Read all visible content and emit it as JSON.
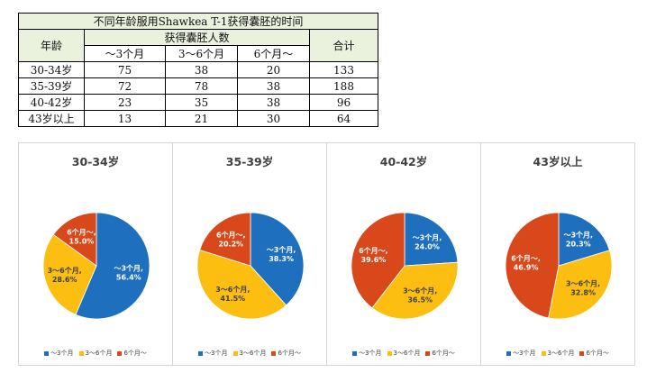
{
  "table": {
    "title": "不同年龄服用Shawkea T-1获得囊胚的时间",
    "age_header": "年龄",
    "group_header": "获得囊胚人数",
    "total_header": "合计",
    "columns": [
      "～3个月",
      "3～6个月",
      "6个月～"
    ],
    "rows": [
      {
        "age": "30-34岁",
        "v": [
          "75",
          "38",
          "20"
        ],
        "total": "133"
      },
      {
        "age": "35-39岁",
        "v": [
          "72",
          "78",
          "38"
        ],
        "total": "188"
      },
      {
        "age": "40-42岁",
        "v": [
          "23",
          "35",
          "38"
        ],
        "total": "96"
      },
      {
        "age": "43岁以上",
        "v": [
          "13",
          "21",
          "30"
        ],
        "total": "64"
      }
    ]
  },
  "colors": {
    "s1": "#1f6fbf",
    "s2": "#fbbe11",
    "s3": "#d9481a"
  },
  "chart_data": [
    {
      "type": "pie",
      "title": "30-34岁",
      "categories": [
        "～3个月",
        "3～6个月",
        "6个月～"
      ],
      "values": [
        56.4,
        28.6,
        15.0
      ],
      "labels": [
        [
          "～3个月,",
          "56.4%"
        ],
        [
          "3～6个月,",
          "28.6%"
        ],
        [
          "6个月～,",
          "15.0%"
        ]
      ],
      "legend": [
        "～3个月",
        "3～6个月",
        "6个月～"
      ]
    },
    {
      "type": "pie",
      "title": "35-39岁",
      "categories": [
        "～3个月",
        "3～6个月",
        "6个月～"
      ],
      "values": [
        38.3,
        41.5,
        20.2
      ],
      "labels": [
        [
          "～3个月,",
          "38.3%"
        ],
        [
          "3～6个月,",
          "41.5%"
        ],
        [
          "6个月～,",
          "20.2%"
        ]
      ],
      "legend": [
        "～3个月",
        "3～6个月",
        "6个月～"
      ]
    },
    {
      "type": "pie",
      "title": "40-42岁",
      "categories": [
        "～3个月",
        "3～6个月",
        "6个月～"
      ],
      "values": [
        24.0,
        36.5,
        39.6
      ],
      "labels": [
        [
          "～3个月,",
          "24.0%"
        ],
        [
          "3～6个月,",
          "36.5%"
        ],
        [
          "6个月～,",
          "39.6%"
        ]
      ],
      "legend": [
        "～3个月",
        "3～6个月",
        "6个月～"
      ]
    },
    {
      "type": "pie",
      "title": "43岁以上",
      "categories": [
        "～3个月",
        "3～6个月",
        "6个月～"
      ],
      "values": [
        20.3,
        32.8,
        46.9
      ],
      "labels": [
        [
          "～3个月,",
          "20.3%"
        ],
        [
          "3～6个月,",
          "32.8%"
        ],
        [
          "6个月～,",
          "46.9%"
        ]
      ],
      "legend": [
        "～3个月",
        "3～6个月",
        "6个月～"
      ]
    }
  ]
}
